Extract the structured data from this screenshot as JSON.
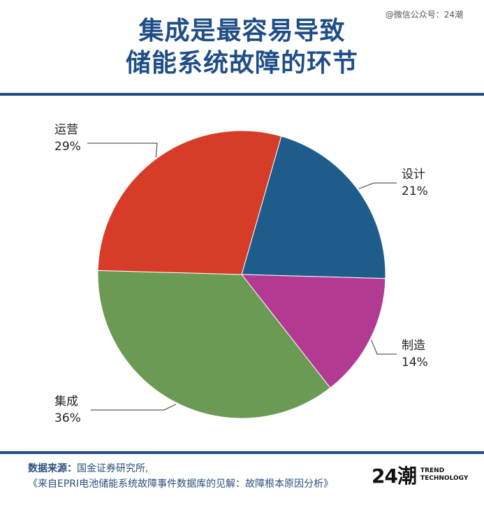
{
  "watermark": "@微信公众号：24潮",
  "title_line1": "集成是最容易导致",
  "title_line2": "储能系统故障的环节",
  "chart_data": {
    "type": "pie",
    "title": "集成是最容易导致储能系统故障的环节",
    "slices": [
      {
        "name": "设计",
        "value": 21,
        "label": "21%",
        "color": "#1e5c8c"
      },
      {
        "name": "制造",
        "value": 14,
        "label": "14%",
        "color": "#b23a93"
      },
      {
        "name": "集成",
        "value": 36,
        "label": "36%",
        "color": "#6b9a55"
      },
      {
        "name": "运营",
        "value": 29,
        "label": "29%",
        "color": "#d63c28"
      }
    ],
    "start_direction": "clockwise from top",
    "legend": "none (labels next to slices)"
  },
  "footer": {
    "source_label": "数据来源：",
    "source_line1": "国金证券研究所,",
    "source_line2": "《来自EPRI电池储能系统故障事件数据库的见解：故障根本原因分析》"
  },
  "logo": {
    "mark": "24潮",
    "text_line1": "TREND",
    "text_line2": "TECHNOLOGY"
  }
}
